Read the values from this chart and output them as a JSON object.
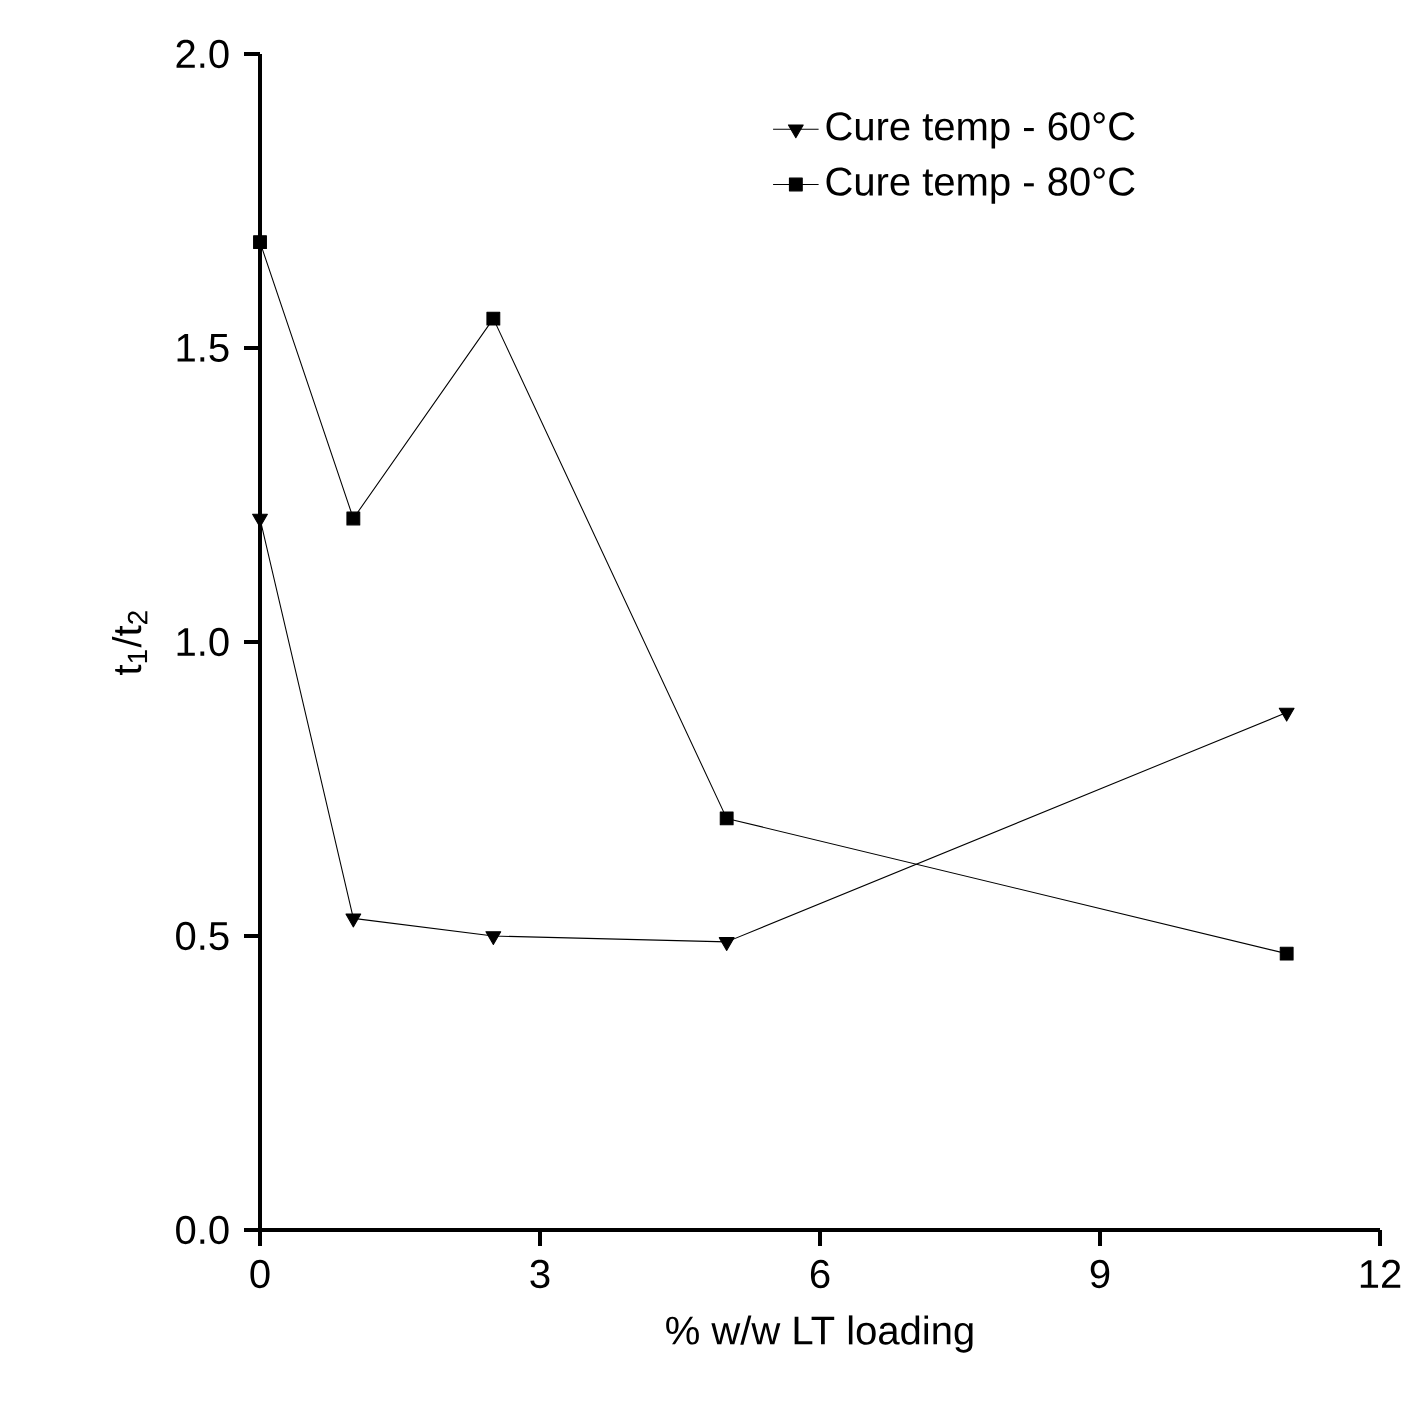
{
  "chart_data": {
    "type": "line",
    "xlabel": "% w/w LT loading",
    "ylabel": "t$_{1}$/t$_{2}$",
    "x": [
      0,
      1,
      2.5,
      5,
      11
    ],
    "series": [
      {
        "name": "Cure temp - 60°C",
        "color": "#000000",
        "marker": "triangle",
        "values": [
          1.21,
          0.53,
          0.5,
          0.49,
          0.88
        ]
      },
      {
        "name": "Cure temp - 80°C",
        "color": "#000000",
        "marker": "square",
        "values": [
          1.68,
          1.21,
          1.55,
          0.7,
          0.47
        ]
      }
    ],
    "xlim": [
      0,
      12
    ],
    "xticks": [
      0,
      3,
      6,
      9,
      12
    ],
    "ylim": [
      0,
      2
    ],
    "yticks": [
      {
        "value": 0,
        "label": "0.0"
      },
      {
        "value": 0.5,
        "label": "0.5"
      },
      {
        "value": 1,
        "label": "1.0"
      },
      {
        "value": 1.5,
        "label": "1.5"
      },
      {
        "value": 2,
        "label": "2.0"
      }
    ],
    "legend": "top right",
    "grid": false,
    "line_style": "solid"
  }
}
